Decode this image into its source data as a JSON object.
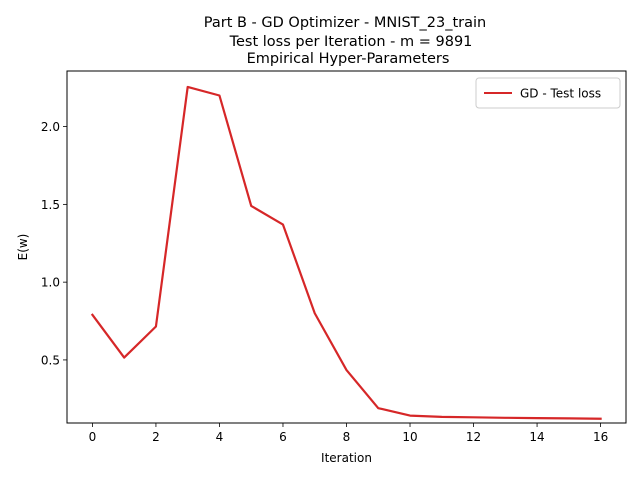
{
  "chart_data": {
    "type": "line",
    "title_lines": [
      "Part B - GD Optimizer - MNIST_23_train",
      "Test loss per Iteration - m = 9891",
      "Empirical Hyper-Parameters"
    ],
    "xlabel": "Iteration",
    "ylabel": "E(w)",
    "xlim": [
      -0.8,
      16.8
    ],
    "ylim": [
      0.0945,
      2.3575
    ],
    "x_ticks": [
      0,
      2,
      4,
      6,
      8,
      10,
      12,
      14,
      16
    ],
    "x_tick_labels": [
      "0",
      "2",
      "4",
      "6",
      "8",
      "10",
      "12",
      "14",
      "16"
    ],
    "y_ticks": [
      0.5,
      1.0,
      1.5,
      2.0
    ],
    "y_tick_labels": [
      "0.5",
      "1.0",
      "1.5",
      "2.0"
    ],
    "grid": false,
    "legend_position": "top-right",
    "series": [
      {
        "name": "GD - Test loss",
        "color": "#d62728",
        "x": [
          0,
          1,
          2,
          3,
          4,
          5,
          6,
          7,
          8,
          9,
          10,
          11,
          12,
          13,
          14,
          15,
          16
        ],
        "values": [
          0.79,
          0.515,
          0.715,
          2.255,
          2.2,
          1.49,
          1.37,
          0.8,
          0.435,
          0.19,
          0.142,
          0.134,
          0.131,
          0.128,
          0.126,
          0.124,
          0.122
        ]
      }
    ]
  }
}
